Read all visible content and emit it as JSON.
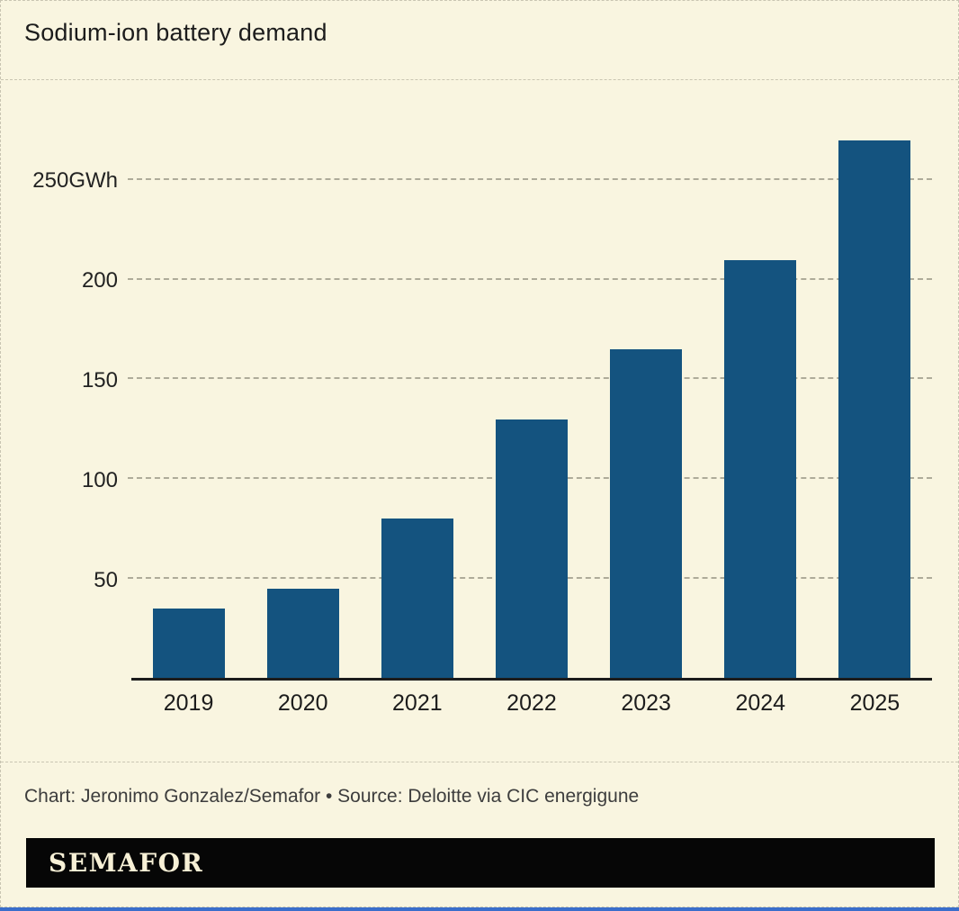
{
  "title": "Sodium-ion battery demand",
  "chart_data": {
    "type": "bar",
    "title": "Sodium-ion battery demand",
    "categories": [
      "2019",
      "2020",
      "2021",
      "2022",
      "2023",
      "2024",
      "2025"
    ],
    "values": [
      35,
      45,
      80,
      130,
      165,
      210,
      270
    ],
    "xlabel": "",
    "ylabel": "GWh",
    "ylim": [
      0,
      295
    ],
    "yticks": [
      50,
      100,
      150,
      200,
      250
    ],
    "ytick_labels": [
      "50",
      "100",
      "150",
      "200",
      "250GWh"
    ],
    "grid": "horizontal dashed",
    "legend": "none",
    "bar_color": "#14537f"
  },
  "footer": {
    "credit": "Chart: Jeronimo Gonzalez/Semafor • Source: Deloitte via CIC energigune"
  },
  "logo": {
    "text": "SEMAFOR"
  },
  "colors": {
    "background": "#f9f5e0",
    "bar": "#14537f",
    "axis": "#1c1c1c",
    "gridline": "#aeab99",
    "accent_bottom_line": "#3a6ecb",
    "logo_background": "#060606",
    "logo_text": "#f7f0d6"
  }
}
